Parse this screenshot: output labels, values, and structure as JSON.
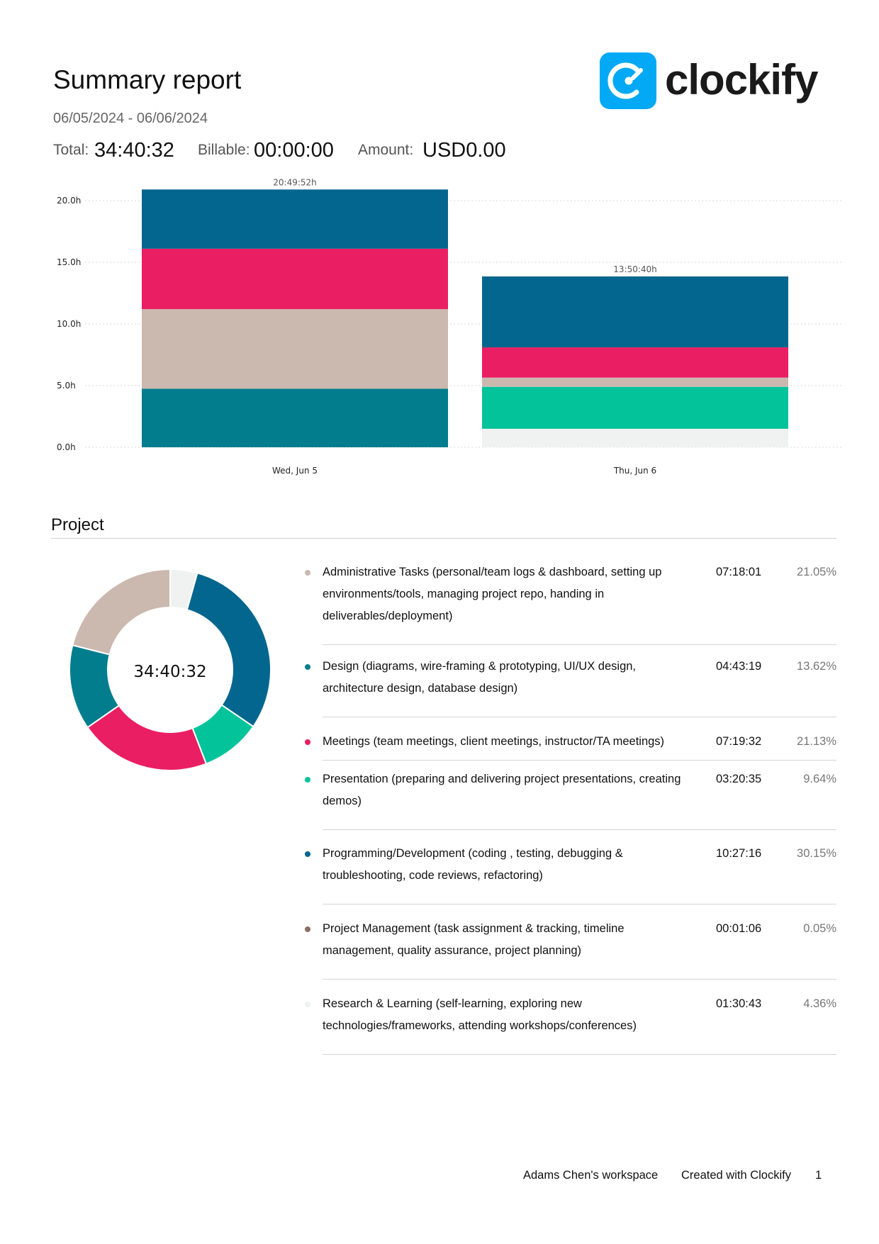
{
  "report": {
    "title": "Summary report",
    "date_range": "06/05/2024 - 06/06/2024",
    "total_label": "Total:",
    "total_value": "34:40:32",
    "billable_label": "Billable:",
    "billable_value": "00:00:00",
    "amount_label": "Amount:",
    "amount_value": "USD0.00"
  },
  "brand": {
    "name": "clockify",
    "badge_color": "#03a9f4",
    "logo_icon": "clockify-c-icon"
  },
  "chart_data": {
    "type": "bar",
    "stacked": true,
    "categories": [
      "Wed, Jun 5",
      "Thu, Jun 6"
    ],
    "bar_totals": [
      "20:49:52h",
      "13:50:40h"
    ],
    "y_ticks": [
      "0.0h",
      "5.0h",
      "10.0h",
      "15.0h",
      "20.0h"
    ],
    "ylim": [
      0,
      21
    ],
    "grid": true,
    "series": [
      {
        "color": "#f0f2f1",
        "values": [
          0,
          1.5
        ]
      },
      {
        "color": "#027d8e",
        "values": [
          4.75,
          0
        ]
      },
      {
        "color": "#03c39b",
        "values": [
          0,
          3.4
        ]
      },
      {
        "color": "#cbb8ae",
        "values": [
          6.45,
          0.75
        ]
      },
      {
        "color": "#ea1e63",
        "values": [
          4.9,
          2.45
        ]
      },
      {
        "color": "#03668e",
        "values": [
          4.8,
          5.75
        ]
      }
    ]
  },
  "project": {
    "heading": "Project",
    "total": "34:40:32",
    "donut": [
      {
        "color": "#f0f2f1",
        "pct": 4.36
      },
      {
        "color": "#03668e",
        "pct": 30.15
      },
      {
        "color": "#03c39b",
        "pct": 9.64
      },
      {
        "color": "#ea1e63",
        "pct": 21.13
      },
      {
        "color": "#027d8e",
        "pct": 13.62
      },
      {
        "color": "#cbb8ae",
        "pct": 21.05
      }
    ],
    "rows": [
      {
        "color": "#cbb8ae",
        "name": "Administrative Tasks (personal/team logs & dashboard, setting up environments/tools, managing project repo, handing in deliverables/deployment)",
        "duration": "07:18:01",
        "percent": "21.05%"
      },
      {
        "color": "#027d8e",
        "name": "Design (diagrams, wire-framing & prototyping, UI/UX design, architecture design, database design)",
        "duration": "04:43:19",
        "percent": "13.62%"
      },
      {
        "color": "#ea1e63",
        "name": "Meetings (team meetings, client meetings, instructor/TA meetings)",
        "duration": "07:19:32",
        "percent": "21.13%"
      },
      {
        "color": "#03c39b",
        "name": "Presentation (preparing and delivering project presentations, creating demos)",
        "duration": "03:20:35",
        "percent": "9.64%"
      },
      {
        "color": "#03668e",
        "name": "Programming/Development (coding , testing, debugging & troubleshooting, code reviews, refactoring)",
        "duration": "10:27:16",
        "percent": "30.15%"
      },
      {
        "color": "#8d6e63",
        "name": "Project Management (task assignment & tracking, timeline management, quality assurance, project planning)",
        "duration": "00:01:06",
        "percent": "0.05%"
      },
      {
        "color": "#f0f2f1",
        "name": "Research & Learning (self-learning, exploring new technologies/frameworks, attending workshops/conferences)",
        "duration": "01:30:43",
        "percent": "4.36%"
      }
    ]
  },
  "footer": {
    "workspace": "Adams Chen's workspace",
    "created_with": "Created with Clockify",
    "page_number": "1"
  }
}
